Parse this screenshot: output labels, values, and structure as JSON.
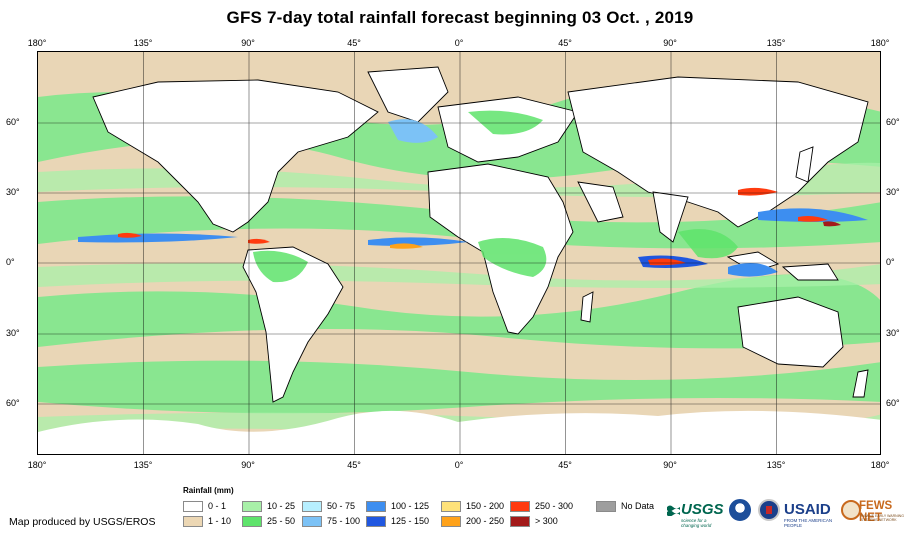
{
  "title": "GFS 7-day total rainfall forecast beginning 03 Oct. , 2019",
  "map": {
    "projection": "Equirectangular",
    "lon_ticks": [
      "180°",
      "135°",
      "90°",
      "45°",
      "0°",
      "45°",
      "90°",
      "135°",
      "180°"
    ],
    "lat_ticks": [
      "60°",
      "30°",
      "0°",
      "30°",
      "60°"
    ]
  },
  "legend": {
    "title": "Rainfall (mm)",
    "items": [
      {
        "label": "0 - 1",
        "color": "#ffffff"
      },
      {
        "label": "1 - 10",
        "color": "#ecd7b4"
      },
      {
        "label": "10 - 25",
        "color": "#a8f0a8"
      },
      {
        "label": "25 - 50",
        "color": "#5ee36b"
      },
      {
        "label": "50 - 75",
        "color": "#b7efff"
      },
      {
        "label": "75 - 100",
        "color": "#7cc2f6"
      },
      {
        "label": "100 - 125",
        "color": "#3d8ef0"
      },
      {
        "label": "125 - 150",
        "color": "#2057e0"
      },
      {
        "label": "150 - 200",
        "color": "#ffe27a"
      },
      {
        "label": "200 - 250",
        "color": "#ffa21a"
      },
      {
        "label": "250 - 300",
        "color": "#ff3b0f"
      },
      {
        "label": "> 300",
        "color": "#a31a1a"
      },
      {
        "label": "No Data",
        "color": "#9e9e9e"
      }
    ]
  },
  "credit": "Map produced by USGS/EROS",
  "logos": {
    "usgs": "USGS",
    "usgs_tagline": "science for a changing world",
    "usaid": "USAID",
    "usaid_tagline": "FROM THE AMERICAN PEOPLE",
    "fews": "FEWS NET",
    "fews_tagline": "FAMINE EARLY WARNING SYSTEMS NETWORK"
  }
}
